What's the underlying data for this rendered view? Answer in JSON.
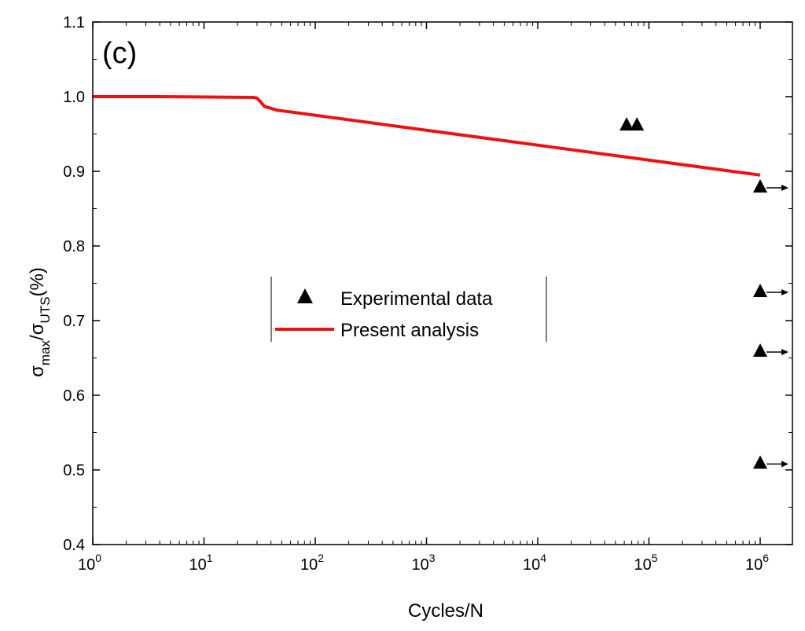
{
  "chart_data": {
    "type": "line",
    "panel_label": "(c)",
    "xlabel": "Cycles/N",
    "ylabel": {
      "main1": "σ",
      "sub1": "max",
      "slash": "/σ",
      "sub2": "UTS",
      "unit": "(%)"
    },
    "x_scale": "log",
    "xlim": [
      1,
      1000000
    ],
    "ylim": [
      0.4,
      1.1
    ],
    "x_ticks": [
      {
        "value": 1,
        "base": "10",
        "exp": "0"
      },
      {
        "value": 10,
        "base": "10",
        "exp": "1"
      },
      {
        "value": 100,
        "base": "10",
        "exp": "2"
      },
      {
        "value": 1000,
        "base": "10",
        "exp": "3"
      },
      {
        "value": 10000,
        "base": "10",
        "exp": "4"
      },
      {
        "value": 100000,
        "base": "10",
        "exp": "5"
      },
      {
        "value": 1000000,
        "base": "10",
        "exp": "6"
      }
    ],
    "y_ticks": [
      "0.4",
      "0.5",
      "0.6",
      "0.7",
      "0.8",
      "0.9",
      "1.0",
      "1.1"
    ],
    "legend": {
      "placement": "center-left",
      "entries": [
        {
          "label": "Experimental data",
          "marker": "triangle"
        },
        {
          "label": "Present analysis",
          "marker": "line"
        }
      ]
    },
    "series": [
      {
        "name": "Present analysis",
        "kind": "line",
        "color": "#ee1111",
        "points": [
          {
            "x": 1,
            "y": 1.0
          },
          {
            "x": 4,
            "y": 1.0
          },
          {
            "x": 28,
            "y": 0.999
          },
          {
            "x": 30,
            "y": 0.998
          },
          {
            "x": 35,
            "y": 0.987
          },
          {
            "x": 45,
            "y": 0.982
          },
          {
            "x": 1000000,
            "y": 0.895
          }
        ]
      },
      {
        "name": "Experimental data",
        "kind": "scatter",
        "color": "#000000",
        "points": [
          {
            "x": 63000,
            "y": 0.963,
            "runout": false
          },
          {
            "x": 78000,
            "y": 0.963,
            "runout": false
          },
          {
            "x": 1000000,
            "y": 0.88,
            "runout": true
          },
          {
            "x": 1000000,
            "y": 0.74,
            "runout": true
          },
          {
            "x": 1000000,
            "y": 0.66,
            "runout": true
          },
          {
            "x": 1000000,
            "y": 0.51,
            "runout": true
          }
        ]
      }
    ]
  }
}
